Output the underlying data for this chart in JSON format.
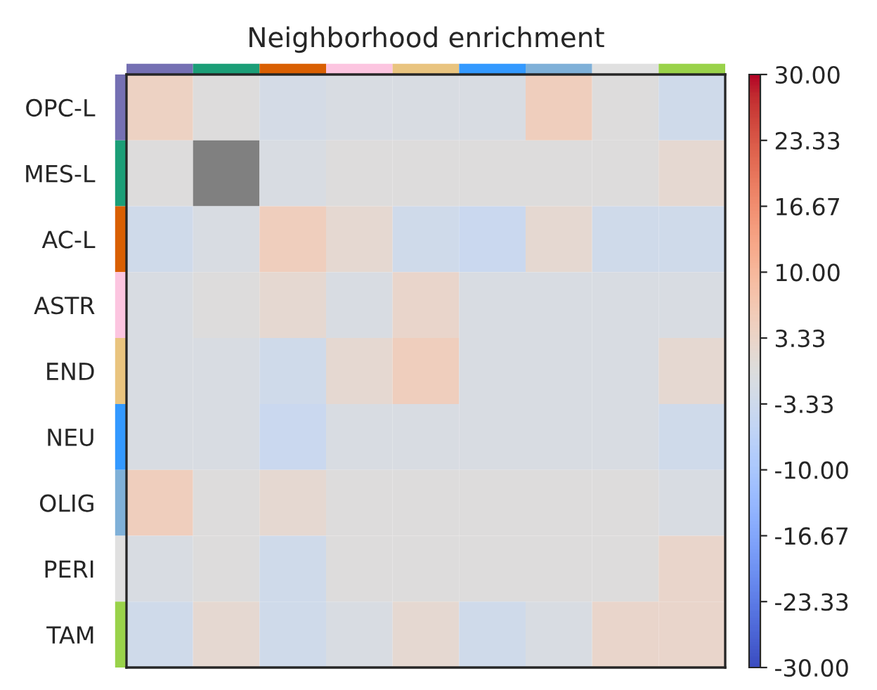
{
  "chart_data": {
    "type": "heatmap",
    "title": "Neighborhood enrichment",
    "categories": [
      null,
      null,
      null,
      null,
      null,
      null,
      null,
      null,
      null
    ],
    "y_categories": [
      "OPC-L",
      "MES-L",
      "AC-L",
      "ASTR",
      "END",
      "NEU",
      "OLIG",
      "PERI",
      "TAM"
    ],
    "colors": [
      "#7570b3",
      "#1b9e77",
      "#d95f02",
      "#fcc5e0",
      "#e9c47f",
      "#3399ff",
      "#7fb0d8",
      "#e0e0e0",
      "#99d24a"
    ],
    "cells": [
      [
        4,
        0,
        -2,
        -1,
        -1,
        -1,
        5,
        0,
        -3
      ],
      [
        0,
        null,
        -1,
        0,
        0,
        0,
        0,
        0,
        2
      ],
      [
        -3,
        -1,
        5,
        2,
        -3,
        -4,
        2,
        -3,
        -3
      ],
      [
        -1,
        0,
        2,
        -1,
        3,
        -1,
        -1,
        -1,
        -1
      ],
      [
        -1,
        -1,
        -3,
        2,
        5,
        -1,
        -1,
        -1,
        2
      ],
      [
        -1,
        -1,
        -4,
        -1,
        -1,
        -1,
        -1,
        -1,
        -3
      ],
      [
        5,
        0,
        2,
        0,
        0,
        0,
        0,
        0,
        -1
      ],
      [
        -1,
        0,
        -3,
        0,
        0,
        0,
        0,
        0,
        3
      ],
      [
        -3,
        2,
        -3,
        -1,
        2,
        -3,
        -1,
        3,
        3
      ]
    ],
    "clim": [
      -30,
      30
    ],
    "cticks": [
      {
        "value": -30,
        "label": "-30.00"
      },
      {
        "value": -23.333,
        "label": "-23.33"
      },
      {
        "value": -16.667,
        "label": "-16.67"
      },
      {
        "value": -10,
        "label": "-10.00"
      },
      {
        "value": -3.333,
        "label": "-3.33"
      },
      {
        "value": 3.333,
        "label": "3.33"
      },
      {
        "value": 10,
        "label": "10.00"
      },
      {
        "value": 16.667,
        "label": "16.67"
      },
      {
        "value": 23.333,
        "label": "23.33"
      },
      {
        "value": 30,
        "label": "30.00"
      }
    ]
  }
}
